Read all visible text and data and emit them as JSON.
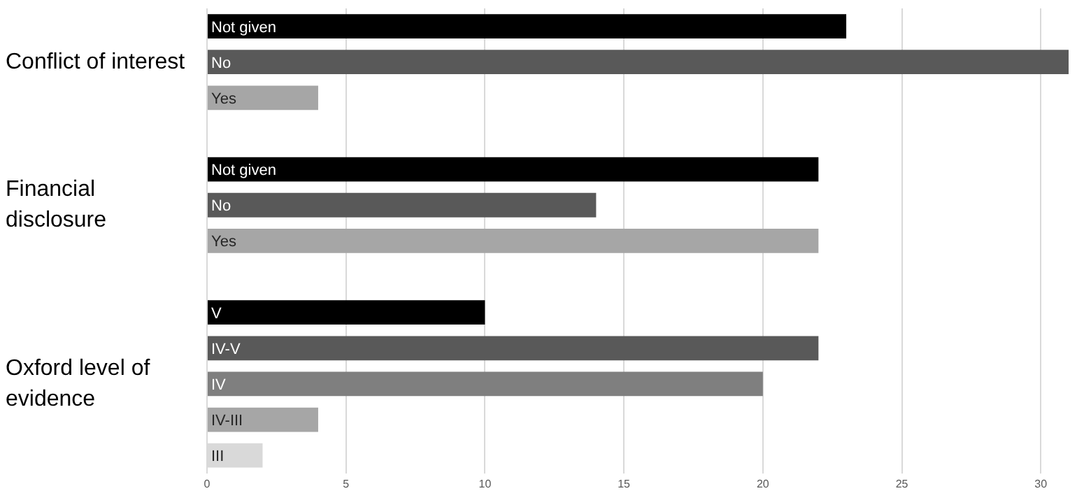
{
  "chart_data": {
    "type": "bar",
    "orientation": "horizontal",
    "categories": [
      "Not given",
      "No",
      "Yes",
      null,
      "Not given",
      "No",
      "Yes",
      null,
      "V",
      "IV-V",
      "IV",
      "IV-III",
      "III"
    ],
    "values": [
      23,
      31,
      4,
      null,
      22,
      14,
      22,
      null,
      10,
      22,
      20,
      4,
      2
    ],
    "colors": [
      "#000000",
      "#595959",
      "#a6a6a6",
      null,
      "#000000",
      "#595959",
      "#a6a6a6",
      null,
      "#000000",
      "#595959",
      "#7f7f7f",
      "#a6a6a6",
      "#d9d9d9"
    ],
    "xlim": [
      0,
      31
    ],
    "xticks": [
      0,
      5,
      10,
      15,
      20,
      25,
      30
    ],
    "grid": "x",
    "legend": false,
    "tick_labels": "x",
    "annotations": [
      "Conflict of interest",
      "Financial disclosure",
      "Oxford level of evidence"
    ]
  }
}
